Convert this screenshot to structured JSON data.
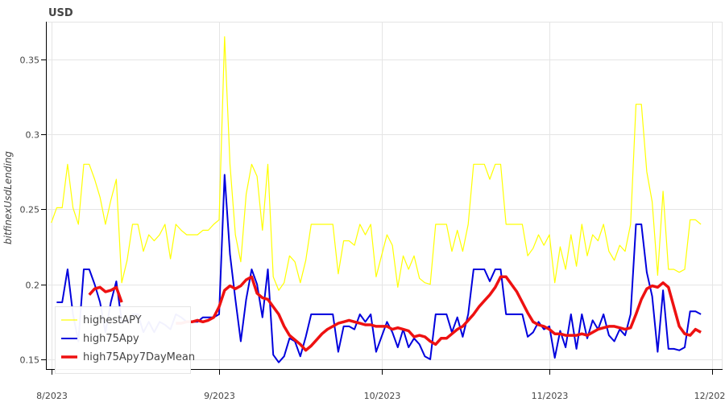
{
  "chart_data": {
    "type": "line",
    "title": "USD",
    "xlabel": "",
    "ylabel": "bitfinexUsdLending",
    "x_start": "2023-08-01",
    "x_end": "2023-11-30",
    "xlim": [
      "2023-07-31",
      "2023-12-03"
    ],
    "ylim": [
      0.143,
      0.375
    ],
    "x_ticks": [
      {
        "date": "2023-08-01",
        "label": "8/2023"
      },
      {
        "date": "2023-09-01",
        "label": "9/2023"
      },
      {
        "date": "2023-10-01",
        "label": "10/2023"
      },
      {
        "date": "2023-11-01",
        "label": "11/2023"
      },
      {
        "date": "2023-12-01",
        "label": "12/2023"
      }
    ],
    "y_ticks": [
      {
        "value": 0.15,
        "label": "0.15"
      },
      {
        "value": 0.2,
        "label": "0.2"
      },
      {
        "value": 0.25,
        "label": "0.25"
      },
      {
        "value": 0.3,
        "label": "0.3"
      },
      {
        "value": 0.35,
        "label": "0.35"
      }
    ],
    "grid": true,
    "legend": "bottom-left",
    "series": [
      {
        "name": "highestAPY",
        "color": "#ffff00",
        "values": [
          0.241,
          0.251,
          0.251,
          0.28,
          0.251,
          0.24,
          0.28,
          0.28,
          0.27,
          0.258,
          0.24,
          0.256,
          0.27,
          0.201,
          0.216,
          0.24,
          0.24,
          0.222,
          0.233,
          0.229,
          0.233,
          0.24,
          0.217,
          0.24,
          0.236,
          0.233,
          0.233,
          0.233,
          0.236,
          0.236,
          0.24,
          0.243,
          0.365,
          0.28,
          0.233,
          0.215,
          0.26,
          0.28,
          0.272,
          0.236,
          0.28,
          0.205,
          0.196,
          0.201,
          0.219,
          0.215,
          0.201,
          0.216,
          0.24,
          0.24,
          0.24,
          0.24,
          0.24,
          0.207,
          0.229,
          0.229,
          0.226,
          0.24,
          0.233,
          0.24,
          0.205,
          0.219,
          0.233,
          0.226,
          0.198,
          0.219,
          0.21,
          0.219,
          0.204,
          0.201,
          0.2,
          0.24,
          0.24,
          0.24,
          0.222,
          0.236,
          0.222,
          0.24,
          0.28,
          0.28,
          0.28,
          0.27,
          0.28,
          0.28,
          0.24,
          0.24,
          0.24,
          0.24,
          0.219,
          0.224,
          0.233,
          0.226,
          0.233,
          0.201,
          0.225,
          0.21,
          0.233,
          0.212,
          0.24,
          0.219,
          0.233,
          0.229,
          0.24,
          0.222,
          0.216,
          0.226,
          0.222,
          0.24,
          0.32,
          0.32,
          0.275,
          0.255,
          0.206,
          0.262,
          0.21,
          0.21,
          0.208,
          0.21,
          0.243,
          0.243,
          0.24
        ]
      },
      {
        "name": "high75Apy",
        "color": "#0000dd",
        "values": [
          null,
          0.188,
          0.188,
          0.21,
          0.18,
          0.162,
          0.21,
          0.21,
          0.2,
          0.188,
          0.168,
          0.188,
          0.202,
          0.175,
          0.175,
          0.18,
          0.18,
          0.168,
          0.175,
          0.168,
          0.175,
          0.173,
          0.17,
          0.18,
          0.178,
          0.175,
          0.175,
          0.175,
          0.178,
          0.178,
          0.178,
          0.18,
          0.273,
          0.22,
          0.19,
          0.162,
          0.19,
          0.21,
          0.2,
          0.178,
          0.21,
          0.153,
          0.148,
          0.152,
          0.164,
          0.162,
          0.152,
          0.165,
          0.18,
          0.18,
          0.18,
          0.18,
          0.18,
          0.155,
          0.172,
          0.172,
          0.17,
          0.18,
          0.175,
          0.18,
          0.155,
          0.165,
          0.175,
          0.168,
          0.158,
          0.17,
          0.158,
          0.164,
          0.16,
          0.152,
          0.15,
          0.18,
          0.18,
          0.18,
          0.168,
          0.178,
          0.165,
          0.18,
          0.21,
          0.21,
          0.21,
          0.202,
          0.21,
          0.21,
          0.18,
          0.18,
          0.18,
          0.18,
          0.165,
          0.168,
          0.175,
          0.17,
          0.172,
          0.151,
          0.169,
          0.158,
          0.18,
          0.157,
          0.18,
          0.164,
          0.176,
          0.17,
          0.18,
          0.166,
          0.162,
          0.17,
          0.166,
          0.18,
          0.24,
          0.24,
          0.208,
          0.192,
          0.155,
          0.196,
          0.157,
          0.157,
          0.156,
          0.158,
          0.182,
          0.182,
          0.18
        ]
      },
      {
        "name": "high75Apy7DayMean",
        "color": "#ee1111",
        "values": [
          null,
          null,
          null,
          null,
          null,
          null,
          null,
          0.193,
          0.197,
          0.198,
          0.195,
          0.196,
          0.198,
          0.188,
          null,
          null,
          null,
          null,
          null,
          null,
          null,
          null,
          null,
          0.174,
          0.174,
          0.175,
          0.175,
          0.176,
          0.175,
          0.176,
          0.178,
          0.185,
          0.196,
          0.199,
          0.197,
          0.199,
          0.203,
          0.205,
          0.194,
          0.191,
          0.19,
          0.185,
          0.18,
          0.172,
          0.166,
          0.163,
          0.16,
          0.156,
          0.159,
          0.163,
          0.167,
          0.17,
          0.172,
          0.174,
          0.175,
          0.176,
          0.175,
          0.174,
          0.173,
          0.173,
          0.172,
          0.172,
          0.172,
          0.17,
          0.171,
          0.17,
          0.169,
          0.165,
          0.166,
          0.165,
          0.162,
          0.16,
          0.164,
          0.164,
          0.167,
          0.17,
          0.172,
          0.176,
          0.18,
          0.185,
          0.189,
          0.193,
          0.198,
          0.205,
          0.205,
          0.2,
          0.195,
          0.188,
          0.181,
          0.175,
          0.173,
          0.172,
          0.17,
          0.167,
          0.167,
          0.166,
          0.166,
          0.166,
          0.167,
          0.166,
          0.168,
          0.17,
          0.171,
          0.172,
          0.172,
          0.171,
          0.17,
          0.171,
          0.18,
          0.19,
          0.197,
          0.199,
          0.198,
          0.201,
          0.198,
          0.185,
          0.172,
          0.167,
          0.166,
          0.17,
          0.168
        ]
      }
    ]
  }
}
